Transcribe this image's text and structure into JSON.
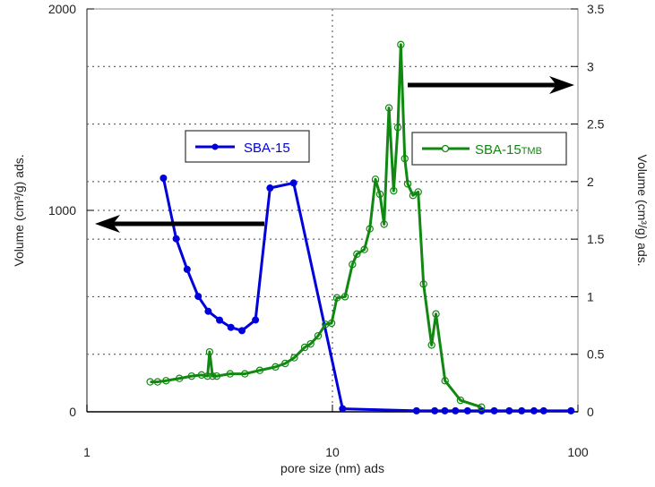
{
  "chart_data": {
    "type": "line",
    "xlabel": "pore size (nm) ads",
    "ylabel_left": "Volume (cm³/g) ads.",
    "ylabel_right": "Volume (cm³/g) ads.",
    "x_scale": "log",
    "xlim": [
      1,
      100
    ],
    "ylim_left": [
      0,
      2000
    ],
    "ylim_right": [
      0,
      3.5
    ],
    "x_ticks": [
      "1",
      "10",
      "100"
    ],
    "y_left_ticks": [
      "0",
      "1000",
      "2000"
    ],
    "y_right_ticks": [
      "0",
      "0.5",
      "1",
      "1.5",
      "2",
      "2.5",
      "3",
      "3.5"
    ],
    "grid": "dotted, at right-axis ticks, at left 1000 and at x=10",
    "series": [
      {
        "name": "SBA-15",
        "axis": "left",
        "color": "#0000dd",
        "marker": "filled-circle",
        "x": [
          2.05,
          2.31,
          2.56,
          2.84,
          3.12,
          3.47,
          3.86,
          4.28,
          4.86,
          5.57,
          6.95,
          11.0,
          22.0,
          26.1,
          28.7,
          31.7,
          35.5,
          40.5,
          45.6,
          52.5,
          59.0,
          66.2,
          72.5,
          93.7
        ],
        "y": [
          1160,
          859,
          707,
          573,
          499,
          455,
          419,
          403,
          456,
          1111,
          1136,
          15,
          5,
          5,
          5,
          5,
          5,
          5,
          5,
          5,
          5,
          5,
          5,
          5
        ]
      },
      {
        "name": "SBA-15TMB",
        "axis": "right",
        "color": "#118811",
        "marker": "open-circle",
        "x": [
          1.81,
          1.94,
          2.1,
          2.38,
          2.67,
          2.93,
          3.1,
          3.16,
          3.25,
          3.38,
          3.83,
          4.4,
          5.06,
          5.86,
          6.42,
          6.99,
          7.71,
          8.15,
          8.74,
          9.37,
          9.92,
          10.43,
          11.25,
          12.06,
          12.58,
          13.49,
          14.2,
          14.97,
          15.61,
          16.24,
          16.99,
          17.76,
          18.47,
          18.99,
          19.71,
          20.26,
          21.29,
          22.35,
          23.5,
          25.35,
          26.4,
          28.76,
          33.24,
          40.45
        ],
        "y": [
          0.26,
          0.26,
          0.27,
          0.29,
          0.31,
          0.32,
          0.31,
          0.52,
          0.31,
          0.31,
          0.33,
          0.33,
          0.36,
          0.39,
          0.42,
          0.47,
          0.56,
          0.59,
          0.66,
          0.76,
          0.77,
          0.99,
          1.0,
          1.28,
          1.37,
          1.41,
          1.59,
          2.02,
          1.89,
          1.63,
          2.64,
          1.92,
          2.47,
          3.19,
          2.2,
          1.98,
          1.88,
          1.91,
          1.11,
          0.58,
          0.85,
          0.27,
          0.1,
          0.04
        ]
      }
    ],
    "legend": [
      {
        "label": "SBA-15",
        "placement": "upper-left-center"
      },
      {
        "label": "SBA-15",
        "suffix": "TMB",
        "placement": "upper-right"
      }
    ],
    "annotations": [
      "arrow pointing to left axis (SBA-15)",
      "arrow pointing to right axis (SBA-15TMB)"
    ]
  }
}
